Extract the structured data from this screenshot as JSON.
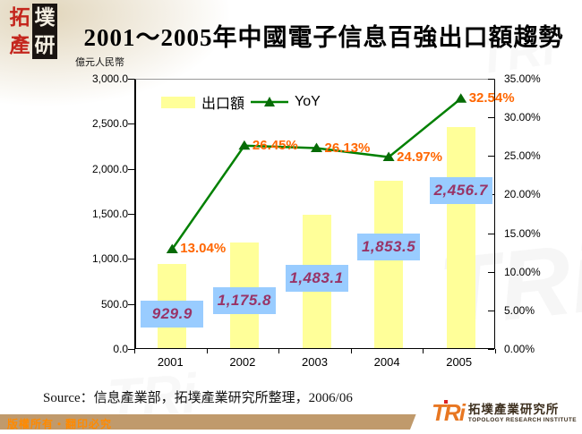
{
  "header": {
    "title": "2001～2005年中國電子信息百強出口額趨勢",
    "logo_chars": [
      "拓",
      "墣",
      "產",
      "研"
    ]
  },
  "chart_data": {
    "type": "combo-bar-line",
    "title": "2001～2005年中國電子信息百強出口額趨勢",
    "categories": [
      "2001",
      "2002",
      "2003",
      "2004",
      "2005"
    ],
    "series": [
      {
        "name": "出口額",
        "type": "bar",
        "axis": "left",
        "values": [
          929.9,
          1175.8,
          1483.1,
          1853.5,
          2456.7
        ],
        "labels": [
          "929.9",
          "1,175.8",
          "1,483.1",
          "1,853.5",
          "2,456.7"
        ],
        "label_cy": [
          262,
          247,
          222,
          187,
          124
        ]
      },
      {
        "name": "YoY",
        "type": "line",
        "axis": "right",
        "values": [
          13.04,
          26.45,
          26.13,
          24.97,
          32.54
        ],
        "labels": [
          "13.04%",
          "26.45%",
          "26.13%",
          "24.97%",
          "32.54%"
        ]
      }
    ],
    "left_axis": {
      "unit": "億元人民幣",
      "min": 0,
      "max": 3000,
      "step": 500,
      "ticks": [
        "3,000.0",
        "2,500.0",
        "2,000.0",
        "1,500.0",
        "1,000.0",
        "500.0",
        "0.0"
      ]
    },
    "right_axis": {
      "min": 0,
      "max": 35,
      "step": 5,
      "ticks": [
        "35.00%",
        "30.00%",
        "25.00%",
        "20.00%",
        "15.00%",
        "10.00%",
        "5.00%",
        "0.00%"
      ]
    },
    "legend": {
      "position": "top-left-inside",
      "entries": [
        "出口額",
        "YoY"
      ]
    },
    "grid": false
  },
  "colors": {
    "bar": "#ffff99",
    "line": "#008000",
    "marker": "#066b06",
    "pct_label": "#ff6600",
    "value_text": "#993366",
    "value_bg": "#99ccff",
    "footer_bar": "#c09a6c",
    "seal_red": "#c4261d",
    "tri_orange": "#e87722"
  },
  "source": {
    "text": "Source：信息產業部，拓墣產業研究所整理，2006/06"
  },
  "footer": {
    "copyright": "版權所有‧翻印必究",
    "tri": {
      "abbr": "TRi",
      "cn": "拓墣產業研究所",
      "en": "TOPOLOGY RESEARCH INSTITUTE"
    }
  },
  "decorations": {
    "watermark_text": "TRi"
  }
}
